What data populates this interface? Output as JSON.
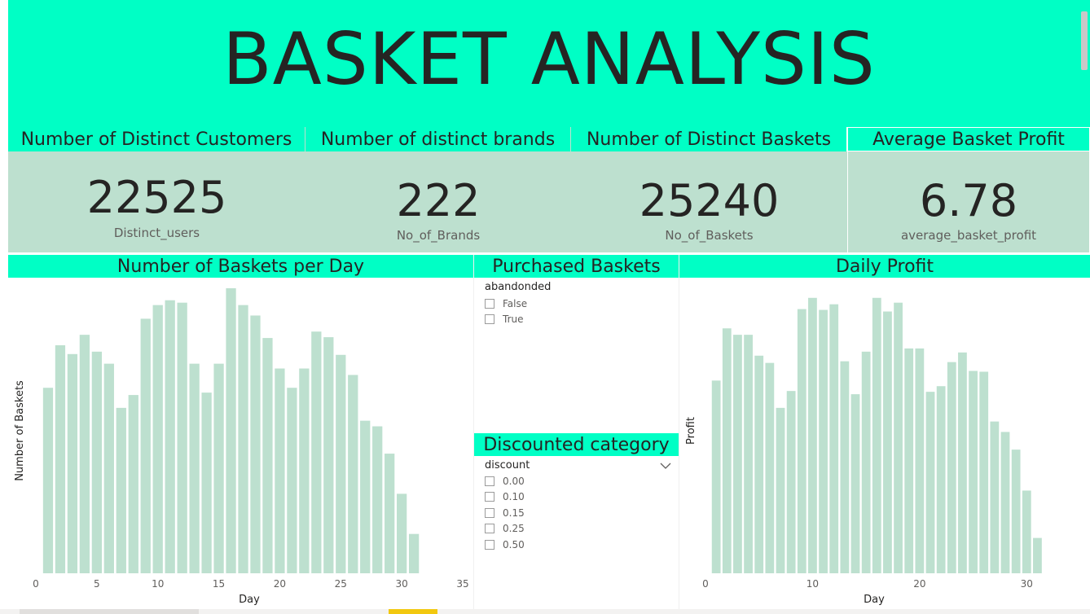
{
  "title": "BASKET ANALYSIS",
  "kpis": [
    {
      "header": "Number of Distinct Customers",
      "value": "22525",
      "label": "Distinct_users"
    },
    {
      "header": "Number of distinct brands",
      "value": "222",
      "label": "No_of_Brands"
    },
    {
      "header": "Number of Distinct Baskets",
      "value": "25240",
      "label": "No_of_Baskets"
    },
    {
      "header": "Average Basket Profit",
      "value": "6.78",
      "label": "average_basket_profit"
    }
  ],
  "baskets_panel": {
    "header": "Number of Baskets per Day"
  },
  "purchased_slicer": {
    "header": "Purchased Baskets",
    "field": "abandonded",
    "options": [
      "False",
      "True"
    ]
  },
  "discount_slicer": {
    "header": "Discounted category",
    "field": "discount",
    "options": [
      "0.00",
      "0.10",
      "0.15",
      "0.25",
      "0.50"
    ]
  },
  "profit_panel": {
    "header": "Daily Profit"
  },
  "colors": {
    "accent": "#00FFC5",
    "card": "#BDE0CF",
    "bar": "#BDE0CF"
  },
  "icons": {
    "dropdown": "chevron-down-icon"
  },
  "chart_data": [
    {
      "type": "bar",
      "title": "Number of Baskets per Day",
      "xlabel": "Day",
      "ylabel": "Number of Baskets",
      "xlim": [
        0,
        35
      ],
      "xticks": [
        0,
        5,
        10,
        15,
        20,
        25,
        30,
        35
      ],
      "ylim": [
        0,
        360
      ],
      "x": [
        1,
        2,
        3,
        4,
        5,
        6,
        7,
        8,
        9,
        10,
        11,
        12,
        13,
        14,
        15,
        16,
        17,
        18,
        19,
        20,
        21,
        22,
        23,
        24,
        25,
        26,
        27,
        28,
        29,
        30,
        31
      ],
      "values": [
        231,
        284,
        273,
        297,
        276,
        261,
        206,
        222,
        317,
        334,
        340,
        337,
        261,
        225,
        261,
        355,
        334,
        321,
        293,
        255,
        231,
        255,
        301,
        294,
        272,
        247,
        190,
        183,
        149,
        99,
        49
      ],
      "grid": false,
      "legend": "none"
    },
    {
      "type": "bar",
      "title": "Daily Profit",
      "xlabel": "Day",
      "ylabel": "Profit",
      "xlim": [
        0,
        31.5
      ],
      "xticks": [
        0,
        10,
        20,
        30
      ],
      "ylim": [
        0,
        360
      ],
      "x": [
        1,
        2,
        3,
        4,
        5,
        6,
        7,
        8,
        9,
        10,
        11,
        12,
        13,
        14,
        15,
        16,
        17,
        18,
        19,
        20,
        21,
        22,
        23,
        24,
        25,
        26,
        27,
        28,
        29,
        30,
        31
      ],
      "values": [
        240,
        305,
        297,
        297,
        271,
        262,
        206,
        227,
        329,
        343,
        328,
        335,
        264,
        223,
        276,
        343,
        326,
        337,
        280,
        280,
        226,
        233,
        263,
        275,
        252,
        251,
        189,
        176,
        154,
        103,
        44
      ],
      "grid": false,
      "legend": "none"
    }
  ]
}
